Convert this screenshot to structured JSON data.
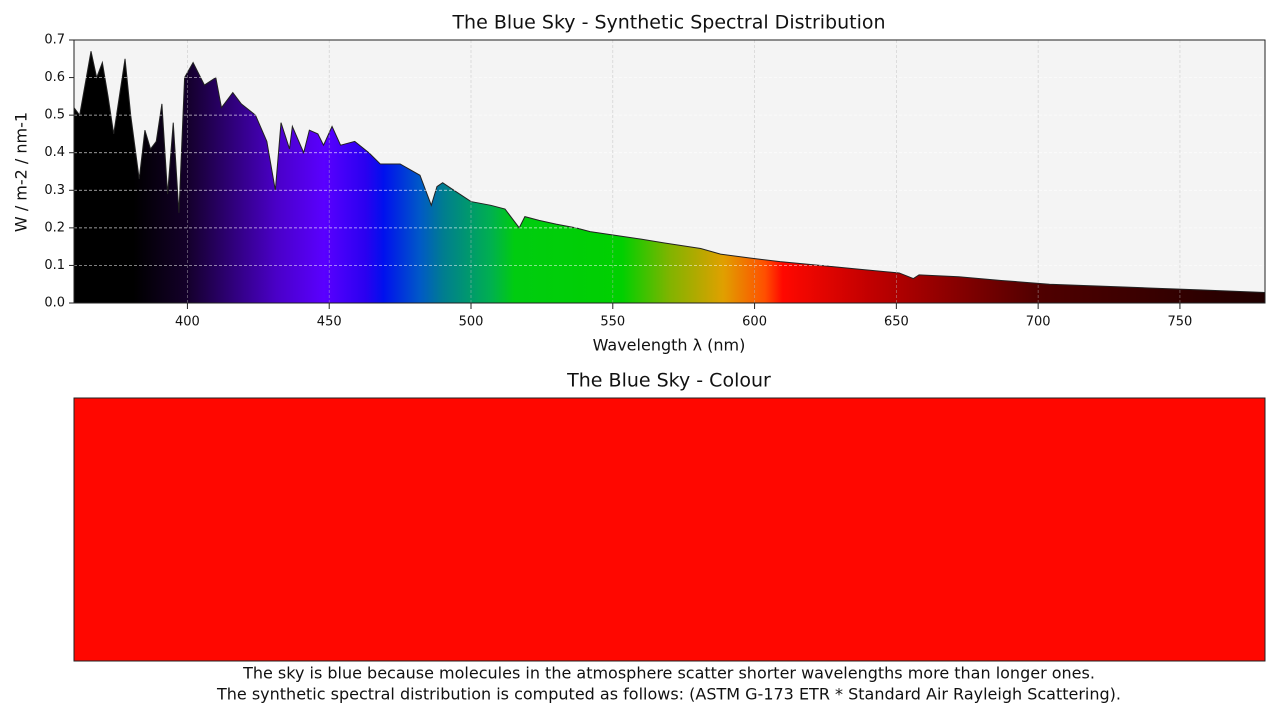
{
  "chart_data": [
    {
      "type": "area",
      "title": "The Blue Sky - Synthetic Spectral Distribution",
      "x_label": "Wavelength λ (nm)",
      "y_label": "W / m-2 / nm-1",
      "x": [
        360,
        362,
        366,
        368,
        370,
        372,
        374,
        378,
        380,
        383,
        385,
        387,
        389,
        391,
        393,
        395,
        397,
        399,
        402,
        406,
        410,
        412,
        416,
        419,
        424,
        428,
        431,
        433,
        436,
        437,
        441,
        443,
        446,
        448,
        451,
        454,
        459,
        464,
        468,
        475,
        482,
        486,
        488,
        490,
        494,
        500,
        507,
        512,
        517,
        519,
        524,
        530,
        537,
        542,
        551,
        560,
        568,
        581,
        588,
        598,
        609,
        623,
        637,
        651,
        656,
        658,
        672,
        687,
        704,
        722,
        739,
        757,
        780
      ],
      "values": [
        0.52,
        0.5,
        0.67,
        0.6,
        0.64,
        0.55,
        0.45,
        0.65,
        0.5,
        0.33,
        0.46,
        0.41,
        0.43,
        0.53,
        0.29,
        0.48,
        0.24,
        0.6,
        0.64,
        0.58,
        0.6,
        0.52,
        0.56,
        0.53,
        0.5,
        0.43,
        0.3,
        0.48,
        0.41,
        0.47,
        0.4,
        0.46,
        0.45,
        0.42,
        0.47,
        0.42,
        0.43,
        0.4,
        0.37,
        0.37,
        0.34,
        0.26,
        0.31,
        0.32,
        0.3,
        0.27,
        0.26,
        0.25,
        0.2,
        0.23,
        0.22,
        0.21,
        0.2,
        0.19,
        0.18,
        0.17,
        0.16,
        0.145,
        0.13,
        0.12,
        0.11,
        0.1,
        0.09,
        0.08,
        0.065,
        0.075,
        0.07,
        0.06,
        0.05,
        0.045,
        0.04,
        0.035,
        0.028
      ],
      "xlim": [
        360,
        780
      ],
      "ylim": [
        0,
        0.7
      ],
      "xticks": [
        400,
        450,
        500,
        550,
        600,
        650,
        700,
        750
      ],
      "yticks": [
        {
          "value": 0,
          "label": "0.0"
        },
        0.1,
        0.2,
        0.3,
        0.4,
        0.5,
        0.6,
        0.7
      ],
      "grid": true,
      "line_color": "#222222"
    },
    {
      "type": "swatch",
      "title": "The Blue Sky - Colour",
      "color": "#ff0700"
    }
  ],
  "caption": [
    "The sky is blue because molecules in the atmosphere scatter shorter wavelengths more than longer ones.",
    "The synthetic spectral distribution is computed as follows: (ASTM G-173 ETR * Standard Air Rayleigh Scattering)."
  ]
}
